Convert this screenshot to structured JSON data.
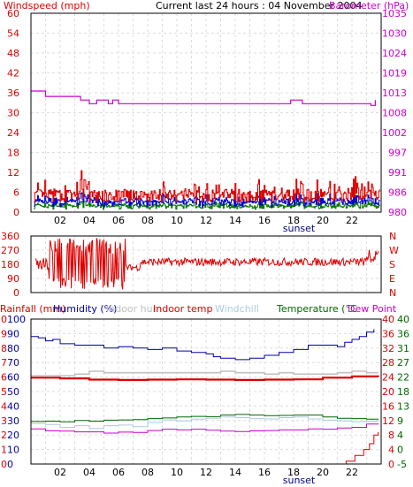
{
  "header": {
    "left_label": "Windspeed (mph)",
    "center_label": "Current last 24 hours : 04 November 2004",
    "right_label": "Barometer (hPa)"
  },
  "bottom_header": {
    "rainfall": "Rainfall (mm)",
    "humidity": "Humidity (%)",
    "indoor_hum": "Indoor hum",
    "indoor_temp": "Indoor temp",
    "windchill": "Windchill",
    "temperature": "Temperature (°C",
    "dewpoint": "Dew Point"
  },
  "colors": {
    "windspeed": "#dd0000",
    "wind_blue": "#0000cc",
    "wind_green": "#007700",
    "barometer": "#cc00cc",
    "direction": "#dd0000",
    "humidity": "#0000aa",
    "indoor_hum": "#c0c0c0",
    "indoor_temp": "#dd0000",
    "windchill": "#aaccdd",
    "temperature": "#006600",
    "dewpoint": "#cc00cc",
    "rainfall": "#dd0000",
    "grid": "#dddddd",
    "frame": "#000000"
  },
  "chart_data": [
    {
      "type": "line",
      "title": "Current last 24 hours : 04 November 2004",
      "x_tick_labels": [
        "02",
        "04",
        "06",
        "08",
        "10",
        "12",
        "14",
        "16",
        "18",
        "20",
        "22"
      ],
      "x_range": [
        0,
        24
      ],
      "sunset_label": "sunset",
      "sunset_hour": 18,
      "left_axis": {
        "label": "Windspeed (mph)",
        "range": [
          0,
          60
        ],
        "ticks": [
          "60",
          "54",
          "48",
          "42",
          "36",
          "30",
          "24",
          "18",
          "12",
          "6",
          "0"
        ]
      },
      "right_axis": {
        "label": "Barometer (hPa)",
        "range": [
          980,
          1035
        ],
        "ticks": [
          "1035",
          "1030",
          "1024",
          "1019",
          "1013",
          "1008",
          "1002",
          "997",
          "991",
          "986",
          "980"
        ]
      },
      "series": [
        {
          "key": "barometer",
          "values": [
            [
              0,
              1013.5
            ],
            [
              0.5,
              1013.5
            ],
            [
              1,
              1012
            ],
            [
              3.2,
              1012
            ],
            [
              3.4,
              1011
            ],
            [
              4,
              1010
            ],
            [
              4.4,
              1010
            ],
            [
              4.5,
              1011
            ],
            [
              5.2,
              1011
            ],
            [
              5.3,
              1010
            ],
            [
              5.5,
              1010
            ],
            [
              5.6,
              1011
            ],
            [
              5.8,
              1011
            ],
            [
              6,
              1010
            ],
            [
              17.6,
              1010
            ],
            [
              17.8,
              1011
            ],
            [
              18.4,
              1011
            ],
            [
              18.6,
              1010
            ],
            [
              23,
              1010
            ],
            [
              23.3,
              1009.5
            ],
            [
              23.6,
              1011
            ]
          ]
        },
        {
          "key": "windspeed",
          "description_values": [
            0,
            24
          ]
        },
        {
          "key": "wind_blue",
          "description_values": [
            0,
            8
          ]
        },
        {
          "key": "wind_green",
          "description_values": [
            0,
            5
          ]
        }
      ]
    },
    {
      "type": "line",
      "left_axis": {
        "range": [
          0,
          360
        ],
        "ticks": [
          "360",
          "270",
          "180",
          "90",
          "0"
        ]
      },
      "right_axis": {
        "ticks": [
          "N",
          "W",
          "S",
          "E",
          "N"
        ]
      },
      "series": [
        {
          "key": "direction",
          "description_values": [
            0,
            360
          ]
        }
      ]
    },
    {
      "type": "line",
      "x_tick_labels": [
        "02",
        "04",
        "06",
        "08",
        "10",
        "12",
        "14",
        "16",
        "18",
        "20",
        "22"
      ],
      "x_range": [
        0,
        24
      ],
      "sunset_label": "sunset",
      "sunset_hour": 18,
      "axis_rainfall": {
        "label": "Rainfall (mm)",
        "range": [
          0,
          10
        ],
        "ticks": [
          "10",
          "9",
          "8",
          "7",
          "6",
          "5",
          "4",
          "3",
          "2",
          "1",
          "0"
        ]
      },
      "axis_humidity": {
        "label": "Humidity (%)",
        "range": [
          0,
          100
        ],
        "ticks": [
          "100",
          "90",
          "80",
          "70",
          "60",
          "50",
          "40",
          "30",
          "20",
          "10",
          "0"
        ]
      },
      "axis_temp_ticks": [
        "40",
        "36",
        "32",
        "28",
        "24",
        "20",
        "16",
        "12",
        "8",
        "4",
        "0"
      ],
      "axis_temp2_ticks": [
        "40",
        "36",
        "31",
        "27",
        "22",
        "18",
        "13",
        "9",
        "4",
        "0",
        "-5"
      ],
      "temp_range": [
        -5,
        40
      ],
      "series": [
        {
          "key": "humidity",
          "values": [
            [
              0,
              88
            ],
            [
              0.5,
              87
            ],
            [
              1,
              85
            ],
            [
              1.5,
              86
            ],
            [
              2,
              83
            ],
            [
              3,
              82
            ],
            [
              4,
              82
            ],
            [
              5,
              80
            ],
            [
              6,
              81
            ],
            [
              7,
              80
            ],
            [
              8,
              79
            ],
            [
              9,
              80
            ],
            [
              10,
              78
            ],
            [
              11,
              77
            ],
            [
              12,
              76
            ],
            [
              12.5,
              74
            ],
            [
              13,
              73
            ],
            [
              14,
              72
            ],
            [
              15,
              73
            ],
            [
              16,
              75
            ],
            [
              17,
              77
            ],
            [
              18,
              79
            ],
            [
              19,
              82
            ],
            [
              20,
              82
            ],
            [
              21,
              81
            ],
            [
              21.5,
              84
            ],
            [
              22,
              86
            ],
            [
              22.5,
              88
            ],
            [
              23,
              91
            ],
            [
              23.5,
              93
            ]
          ]
        },
        {
          "key": "indoor_hum",
          "values": [
            [
              0,
              61
            ],
            [
              2,
              61
            ],
            [
              3,
              62
            ],
            [
              4,
              64
            ],
            [
              5,
              63
            ],
            [
              6,
              63
            ],
            [
              8,
              63
            ],
            [
              10,
              63
            ],
            [
              12,
              63
            ],
            [
              13,
              64
            ],
            [
              14,
              63
            ],
            [
              16,
              62
            ],
            [
              17,
              63
            ],
            [
              18,
              62
            ],
            [
              20,
              62
            ],
            [
              21,
              63
            ],
            [
              22,
              64
            ],
            [
              23,
              63
            ],
            [
              23.8,
              63
            ]
          ]
        },
        {
          "key": "indoor_temp",
          "values": [
            [
              0,
              21.8
            ],
            [
              2,
              21.6
            ],
            [
              4,
              21.2
            ],
            [
              6,
              21.1
            ],
            [
              8,
              21.2
            ],
            [
              10,
              21.3
            ],
            [
              12,
              21.2
            ],
            [
              14,
              21.1
            ],
            [
              16,
              21.2
            ],
            [
              18,
              21.3
            ],
            [
              20,
              21.8
            ],
            [
              22,
              22.2
            ],
            [
              23.8,
              22.1
            ]
          ]
        },
        {
          "key": "temperature",
          "values": [
            [
              0,
              8.2
            ],
            [
              1,
              8.3
            ],
            [
              2,
              8.1
            ],
            [
              3,
              8.5
            ],
            [
              4,
              8.3
            ],
            [
              5,
              8.6
            ],
            [
              6,
              8.7
            ],
            [
              7,
              8.8
            ],
            [
              8,
              9.1
            ],
            [
              9,
              9.3
            ],
            [
              10,
              9.6
            ],
            [
              11,
              9.8
            ],
            [
              12,
              9.7
            ],
            [
              13,
              10.2
            ],
            [
              14,
              10.4
            ],
            [
              15,
              10.2
            ],
            [
              16,
              10.0
            ],
            [
              17,
              10.1
            ],
            [
              18,
              10.2
            ],
            [
              19,
              10.2
            ],
            [
              20,
              9.6
            ],
            [
              21,
              9.2
            ],
            [
              22,
              9.1
            ],
            [
              23,
              8.9
            ],
            [
              23.8,
              9.0
            ]
          ]
        },
        {
          "key": "windchill",
          "values": [
            [
              0,
              7.6
            ],
            [
              1,
              7.3
            ],
            [
              2,
              6.4
            ],
            [
              3,
              6.9
            ],
            [
              4,
              6.0
            ],
            [
              5,
              6.9
            ],
            [
              6,
              7.1
            ],
            [
              7,
              6.6
            ],
            [
              8,
              7.9
            ],
            [
              9,
              8.7
            ],
            [
              10,
              8.4
            ],
            [
              11,
              8.9
            ],
            [
              12,
              9.2
            ],
            [
              13,
              9.6
            ],
            [
              14,
              9.4
            ],
            [
              15,
              9.1
            ],
            [
              16,
              9.0
            ],
            [
              17,
              9.4
            ],
            [
              18,
              9.6
            ],
            [
              19,
              9.0
            ],
            [
              20,
              8.6
            ],
            [
              21,
              8.4
            ],
            [
              22,
              8.1
            ],
            [
              23,
              8.3
            ],
            [
              23.8,
              8.5
            ]
          ]
        },
        {
          "key": "dewpoint",
          "values": [
            [
              0,
              5.9
            ],
            [
              1,
              5.3
            ],
            [
              2,
              5.2
            ],
            [
              3,
              5.0
            ],
            [
              4,
              5.0
            ],
            [
              5,
              4.6
            ],
            [
              6,
              4.9
            ],
            [
              7,
              4.8
            ],
            [
              8,
              5.4
            ],
            [
              9,
              5.8
            ],
            [
              10,
              5.6
            ],
            [
              11,
              5.8
            ],
            [
              12,
              5.5
            ],
            [
              13,
              5.2
            ],
            [
              14,
              5.1
            ],
            [
              15,
              5.3
            ],
            [
              16,
              5.4
            ],
            [
              17,
              5.6
            ],
            [
              18,
              5.6
            ],
            [
              19,
              5.9
            ],
            [
              20,
              5.8
            ],
            [
              21,
              6.2
            ],
            [
              22,
              6.4
            ],
            [
              23,
              7.4
            ],
            [
              23.8,
              7.6
            ]
          ]
        },
        {
          "key": "rainfall",
          "values": [
            [
              0,
              0
            ],
            [
              21,
              0
            ],
            [
              21.6,
              0.2
            ],
            [
              22.2,
              0.6
            ],
            [
              22.8,
              1.0
            ],
            [
              23.2,
              1.4
            ],
            [
              23.5,
              2.0
            ],
            [
              23.8,
              2.2
            ]
          ]
        }
      ]
    }
  ]
}
